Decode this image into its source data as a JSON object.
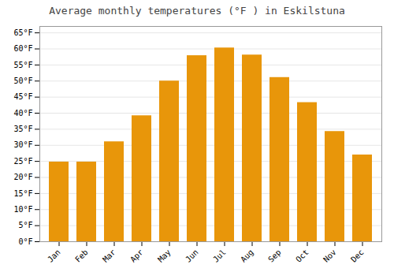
{
  "chart_data": {
    "type": "bar",
    "title": "Average monthly temperatures (°F ) in Eskilstuna",
    "categories": [
      "Jan",
      "Feb",
      "Mar",
      "Apr",
      "May",
      "Jun",
      "Jul",
      "Aug",
      "Sep",
      "Oct",
      "Nov",
      "Dec"
    ],
    "values": [
      24.8,
      24.8,
      31.1,
      39.2,
      50.0,
      57.9,
      60.3,
      58.1,
      51.1,
      43.3,
      34.3,
      27.0
    ],
    "color": "#E8960A",
    "ylim": [
      0,
      67
    ],
    "yticks": [
      {
        "value": 0,
        "label": "0°F"
      },
      {
        "value": 5,
        "label": "5°F"
      },
      {
        "value": 10,
        "label": "10°F"
      },
      {
        "value": 15,
        "label": "15°F"
      },
      {
        "value": 20,
        "label": "20°F"
      },
      {
        "value": 25,
        "label": "25°F"
      },
      {
        "value": 30,
        "label": "30°F"
      },
      {
        "value": 35,
        "label": "35°F"
      },
      {
        "value": 40,
        "label": "40°F"
      },
      {
        "value": 45,
        "label": "45°F"
      },
      {
        "value": 50,
        "label": "50°F"
      },
      {
        "value": 55,
        "label": "55°F"
      },
      {
        "value": 60,
        "label": "60°F"
      },
      {
        "value": 65,
        "label": "65°F"
      }
    ],
    "grid": true
  }
}
